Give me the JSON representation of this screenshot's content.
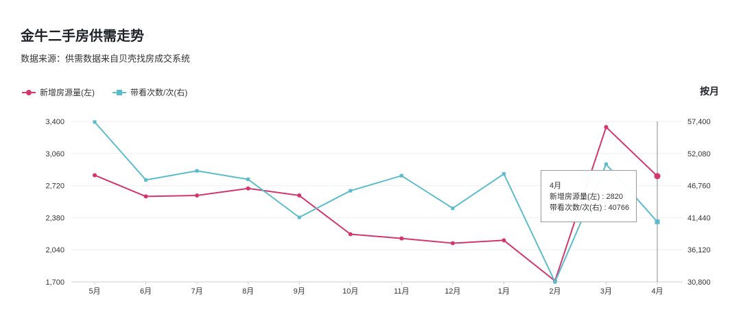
{
  "page": {
    "title": "金牛二手房供需走势",
    "subtitle": "数据来源：供需数据来自贝壳找房成交系统",
    "period_label": "按月"
  },
  "tooltip": {
    "title": "4月",
    "line1": "新增房源量(左) : 2820",
    "line2": "带看次数/次(右) : 40766"
  },
  "colors": {
    "series_left": "#d4366a",
    "series_right": "#5bbccd",
    "grid": "#eeeeee",
    "axis_text": "#333333"
  },
  "chart_data": {
    "type": "line",
    "categories": [
      "5月",
      "6月",
      "7月",
      "8月",
      "9月",
      "10月",
      "11月",
      "12月",
      "1月",
      "2月",
      "3月",
      "4月"
    ],
    "series": [
      {
        "name": "新增房源量(左)",
        "axis": "left",
        "marker": "circle",
        "values": [
          2830,
          2605,
          2615,
          2690,
          2615,
          2205,
          2160,
          2110,
          2140,
          1710,
          3340,
          2820
        ]
      },
      {
        "name": "带看次数/次(右)",
        "axis": "right",
        "marker": "square",
        "values": [
          57300,
          47700,
          49200,
          47800,
          41500,
          45900,
          48400,
          43000,
          48700,
          30800,
          50300,
          40766
        ]
      }
    ],
    "y_left": {
      "min": 1700,
      "max": 3400,
      "ticks": [
        "3,400",
        "3,060",
        "2,720",
        "2,380",
        "2,040",
        "1,700"
      ]
    },
    "y_right": {
      "min": 30800,
      "max": 57400,
      "ticks": [
        "57,400",
        "52,080",
        "46,760",
        "41,440",
        "36,120",
        "30,800"
      ]
    },
    "grid": true,
    "legend": "top-left",
    "highlight_index": 11
  }
}
